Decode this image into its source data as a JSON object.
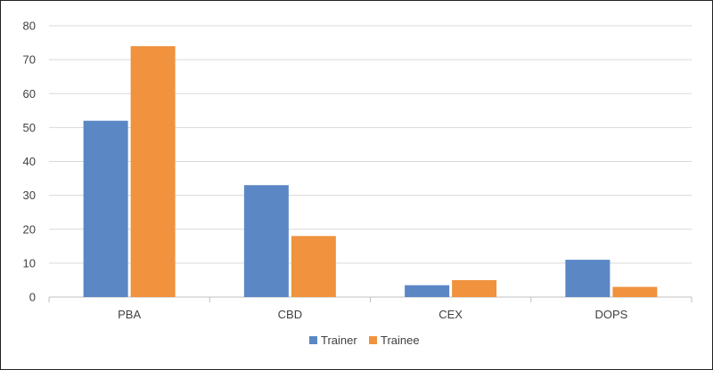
{
  "chart_data": {
    "type": "bar",
    "categories": [
      "PBA",
      "CBD",
      "CEX",
      "DOPS"
    ],
    "series": [
      {
        "name": "Trainer",
        "color": "#5b87c5",
        "values": [
          52,
          33,
          3.5,
          11
        ]
      },
      {
        "name": "Trainee",
        "color": "#f0923e",
        "values": [
          74,
          18,
          5,
          3
        ]
      }
    ],
    "ylim": [
      0,
      80
    ],
    "yticks": [
      0,
      10,
      20,
      30,
      40,
      50,
      60,
      70,
      80
    ],
    "grid": true,
    "legend": "bottom-center"
  }
}
